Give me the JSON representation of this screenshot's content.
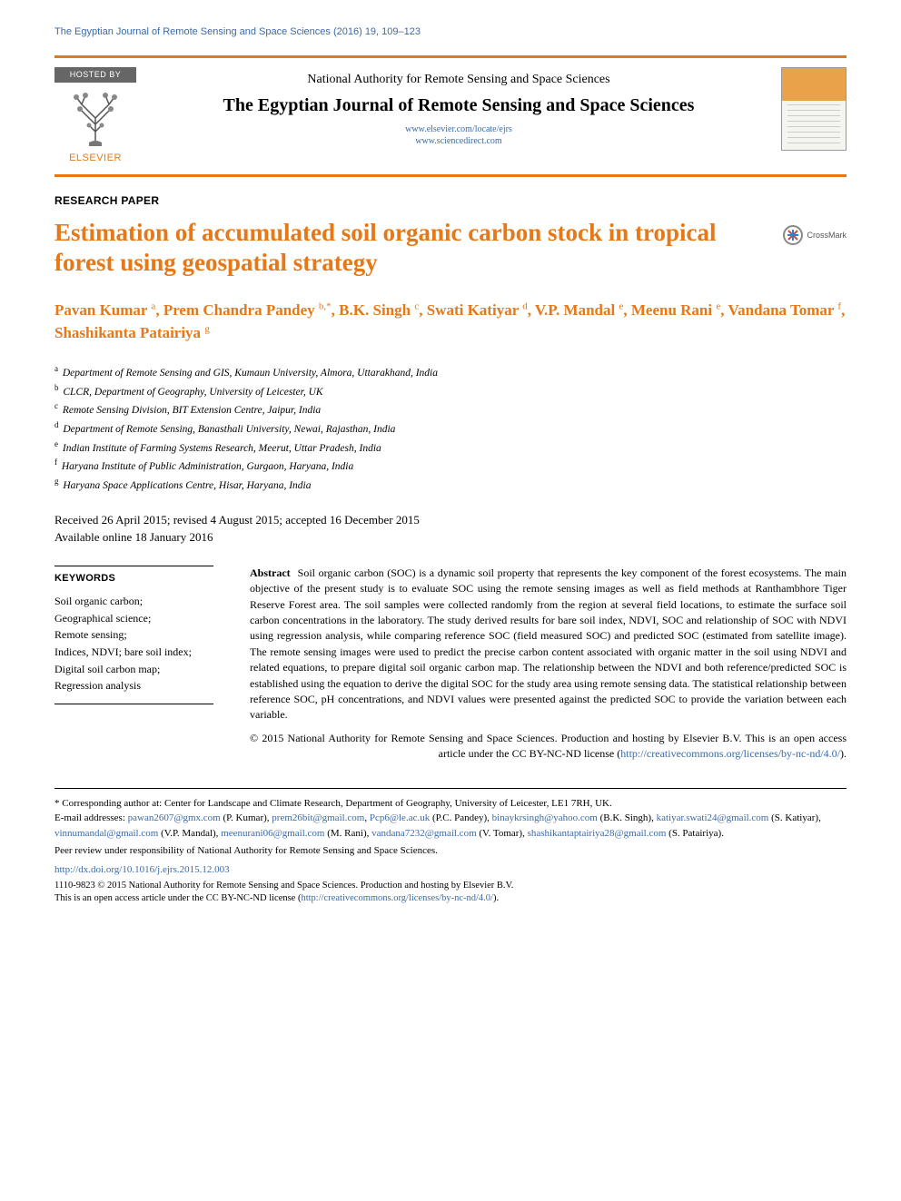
{
  "running_header": "The Egyptian Journal of Remote Sensing and Space Sciences (2016) 19, 109–123",
  "hosted_by_label": "HOSTED BY",
  "publisher_name": "ELSEVIER",
  "authority": "National Authority for Remote Sensing and Space Sciences",
  "journal_name": "The Egyptian Journal of Remote Sensing and Space Sciences",
  "journal_url1": "www.elsevier.com/locate/ejrs",
  "journal_url2": "www.sciencedirect.com",
  "article_type": "RESEARCH PAPER",
  "article_title": "Estimation of accumulated soil organic carbon stock in tropical forest using geospatial strategy",
  "crossmark_label": "CrossMark",
  "authors_html": "Pavan Kumar <sup>a</sup>, Prem Chandra Pandey <sup>b,*</sup>, B.K. Singh <sup>c</sup>, Swati Katiyar <sup>d</sup>, V.P. Mandal <sup>e</sup>, Meenu Rani <sup>e</sup>, Vandana Tomar <sup>f</sup>, Shashikanta Patairiya <sup>g</sup>",
  "affiliations": [
    {
      "sup": "a",
      "text": "Department of Remote Sensing and GIS, Kumaun University, Almora, Uttarakhand, India"
    },
    {
      "sup": "b",
      "text": "CLCR, Department of Geography, University of Leicester, UK"
    },
    {
      "sup": "c",
      "text": "Remote Sensing Division, BIT Extension Centre, Jaipur, India"
    },
    {
      "sup": "d",
      "text": "Department of Remote Sensing, Banasthali University, Newai, Rajasthan, India"
    },
    {
      "sup": "e",
      "text": "Indian Institute of Farming Systems Research, Meerut, Uttar Pradesh, India"
    },
    {
      "sup": "f",
      "text": "Haryana Institute of Public Administration, Gurgaon, Haryana, India"
    },
    {
      "sup": "g",
      "text": "Haryana Space Applications Centre, Hisar, Haryana, India"
    }
  ],
  "dates_line1": "Received 26 April 2015; revised 4 August 2015; accepted 16 December 2015",
  "dates_line2": "Available online 18 January 2016",
  "keywords_heading": "KEYWORDS",
  "keywords": "Soil organic carbon;\nGeographical science;\nRemote sensing;\nIndices, NDVI; bare soil index;\nDigital soil carbon map;\nRegression analysis",
  "abstract_label": "Abstract",
  "abstract_text": "Soil organic carbon (SOC) is a dynamic soil property that represents the key component of the forest ecosystems. The main objective of the present study is to evaluate SOC using the remote sensing images as well as field methods at Ranthambhore Tiger Reserve Forest area. The soil samples were collected randomly from the region at several field locations, to estimate the surface soil carbon concentrations in the laboratory. The study derived results for bare soil index, NDVI, SOC and relationship of SOC with NDVI using regression analysis, while comparing reference SOC (field measured SOC) and predicted SOC (estimated from satellite image). The remote sensing images were used to predict the precise carbon content associated with organic matter in the soil using NDVI and related equations, to prepare digital soil organic carbon map. The relationship between the NDVI and both reference/predicted SOC is established using the equation to derive the digital SOC for the study area using remote sensing data. The statistical relationship between reference SOC, pH concentrations, and NDVI values were presented against the predicted SOC to provide the variation between each variable.",
  "copyright_text": "© 2015 National Authority for Remote Sensing and Space Sciences. Production and hosting by Elsevier B.V. This is an open access article under the CC BY-NC-ND license (",
  "license_url": "http://creativecommons.org/licenses/by-nc-nd/4.0/",
  "copyright_close": ").",
  "corresponding_prefix": "* Corresponding author at: Center for Landscape and Climate Research, Department of Geography, University of Leicester, LE1 7RH, UK.",
  "emails_label": "E-mail addresses: ",
  "emails": [
    {
      "addr": "pawan2607@gmx.com",
      "who": "(P. Kumar)"
    },
    {
      "addr": "prem26bit@gmail.com",
      "who": ""
    },
    {
      "addr": "Pcp6@le.ac.uk",
      "who": "(P.C. Pandey)"
    },
    {
      "addr": "binaykrsingh@yahoo.com",
      "who": "(B.K. Singh)"
    },
    {
      "addr": "katiyar.swati24@gmail.com",
      "who": "(S. Katiyar)"
    },
    {
      "addr": "vinnumandal@gmail.com",
      "who": "(V.P. Mandal)"
    },
    {
      "addr": "meenurani06@gmail.com",
      "who": "(M. Rani)"
    },
    {
      "addr": "vandana7232@gmail.com",
      "who": "(V. Tomar)"
    },
    {
      "addr": "shashikantaptairiya28@gmail.com",
      "who": "(S. Patairiya)"
    }
  ],
  "peer_review": "Peer review under responsibility of National Authority for Remote Sensing and Space Sciences.",
  "doi": "http://dx.doi.org/10.1016/j.ejrs.2015.12.003",
  "footer_issn": "1110-9823 © 2015 National Authority for Remote Sensing and Space Sciences. Production and hosting by Elsevier B.V.",
  "footer_license": "This is an open access article under the CC BY-NC-ND license (",
  "footer_license_url": "http://creativecommons.org/licenses/by-nc-nd/4.0/",
  "footer_license_close": ").",
  "colors": {
    "accent_orange": "#e67817",
    "link_blue": "#3a6aa8",
    "text_black": "#000000",
    "hosted_bg": "#666666"
  },
  "typography": {
    "running_header_pt": 11,
    "title_pt": 27,
    "authors_pt": 17,
    "body_pt": 12,
    "footnote_pt": 11,
    "font_serif": "Times New Roman",
    "font_sans": "Arial"
  }
}
